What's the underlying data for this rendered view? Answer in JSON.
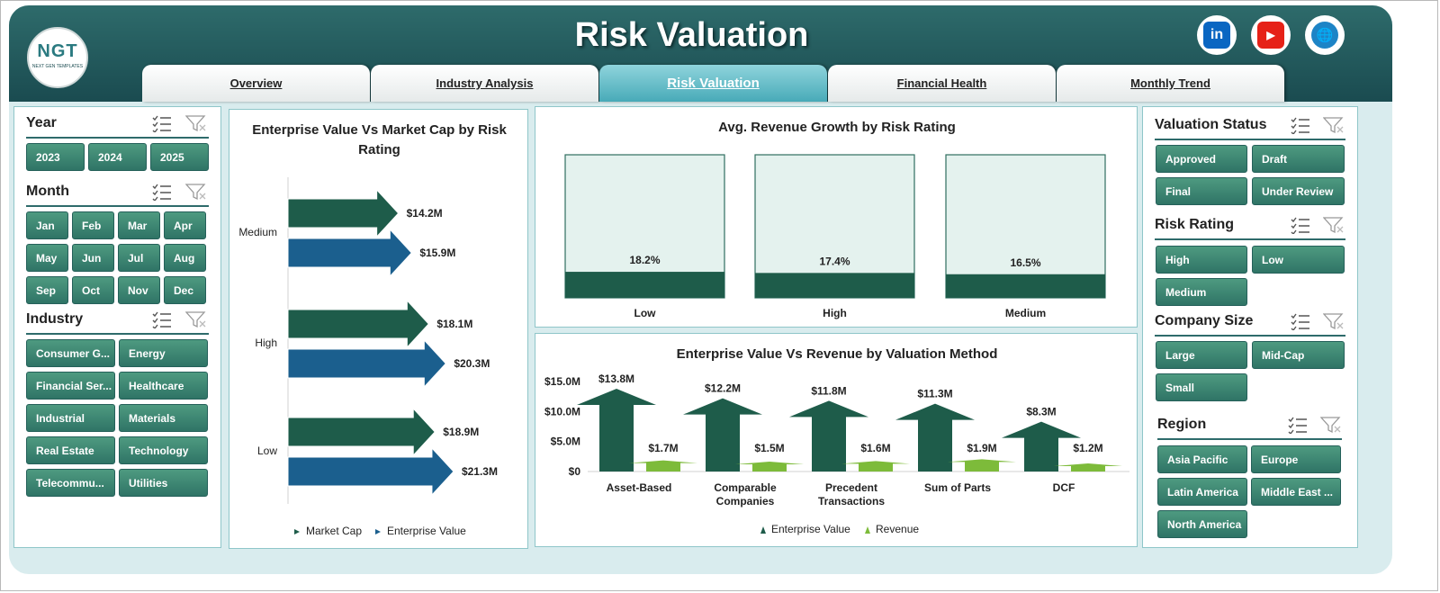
{
  "app": {
    "title": "Risk Valuation",
    "logo_text": "NGT",
    "logo_subtext": "NEXT GEN TEMPLATES",
    "social": [
      "in",
      "▶",
      "🌐"
    ]
  },
  "tabs": [
    {
      "label": "Overview",
      "active": false
    },
    {
      "label": "Industry Analysis",
      "active": false
    },
    {
      "label": "Risk Valuation",
      "active": true
    },
    {
      "label": "Financial Health",
      "active": false
    },
    {
      "label": "Monthly Trend",
      "active": false
    }
  ],
  "left_slicers": {
    "year": {
      "title": "Year",
      "items": [
        "2023",
        "2024",
        "2025"
      ]
    },
    "month": {
      "title": "Month",
      "items": [
        "Jan",
        "Feb",
        "Mar",
        "Apr",
        "May",
        "Jun",
        "Jul",
        "Aug",
        "Sep",
        "Oct",
        "Nov",
        "Dec"
      ]
    },
    "industry": {
      "title": "Industry",
      "items": [
        "Consumer G...",
        "Energy",
        "Financial Ser...",
        "Healthcare",
        "Industrial",
        "Materials",
        "Real Estate",
        "Technology",
        "Telecommu...",
        "Utilities"
      ]
    }
  },
  "right_slicers": {
    "valuation_status": {
      "title": "Valuation Status",
      "items": [
        "Approved",
        "Draft",
        "Final",
        "Under Review"
      ]
    },
    "risk_rating": {
      "title": "Risk Rating",
      "items": [
        "High",
        "Low",
        "Medium"
      ]
    },
    "company_size": {
      "title": "Company Size",
      "items": [
        "Large",
        "Mid-Cap",
        "Small"
      ]
    },
    "region": {
      "title": "Region",
      "items": [
        "Asia Pacific",
        "Europe",
        "Latin America",
        "Middle East ...",
        "North America"
      ]
    }
  },
  "chart_data": [
    {
      "type": "bar",
      "title": "Enterprise Value Vs Market Cap by Risk Rating",
      "categories": [
        "Medium",
        "High",
        "Low"
      ],
      "series": [
        {
          "name": "Market Cap",
          "values": [
            14.2,
            18.1,
            18.9
          ],
          "labels": [
            "$14.2M",
            "$18.1M",
            "$18.9M"
          ],
          "color": "#1e5c4a"
        },
        {
          "name": "Enterprise Value",
          "values": [
            15.9,
            20.3,
            21.3
          ],
          "labels": [
            "$15.9M",
            "$20.3M",
            "$21.3M"
          ],
          "color": "#1b5f8e"
        }
      ],
      "orientation": "horizontal",
      "legend": "bottom"
    },
    {
      "type": "bar",
      "title": "Avg. Revenue  Growth by Risk Rating",
      "categories": [
        "Low",
        "High",
        "Medium"
      ],
      "values": [
        18.2,
        17.4,
        16.5
      ],
      "labels": [
        "18.2%",
        "17.4%",
        "16.5%"
      ],
      "ylim": [
        0,
        100
      ],
      "color": "#1e5c4a"
    },
    {
      "type": "bar",
      "title": "Enterprise Value Vs Revenue  by Valuation Method",
      "categories": [
        [
          "Asset-Based"
        ],
        [
          "Comparable",
          "Companies"
        ],
        [
          "Precedent",
          "Transactions"
        ],
        [
          "Sum of Parts"
        ],
        [
          "DCF"
        ]
      ],
      "series": [
        {
          "name": "Enterprise Value",
          "values": [
            13.8,
            12.2,
            11.8,
            11.3,
            8.3
          ],
          "labels": [
            "$13.8M",
            "$12.2M",
            "$11.8M",
            "$11.3M",
            "$8.3M"
          ],
          "color": "#1e5c4a"
        },
        {
          "name": "Revenue",
          "values": [
            1.7,
            1.5,
            1.6,
            1.9,
            1.2
          ],
          "labels": [
            "$1.7M",
            "$1.5M",
            "$1.6M",
            "$1.9M",
            "$1.2M"
          ],
          "color": "#7dbb3a"
        }
      ],
      "yticks": [
        "$0",
        "$5.0M",
        "$10.0M",
        "$15.0M"
      ],
      "ylim": [
        0,
        15
      ],
      "legend": "bottom"
    }
  ]
}
